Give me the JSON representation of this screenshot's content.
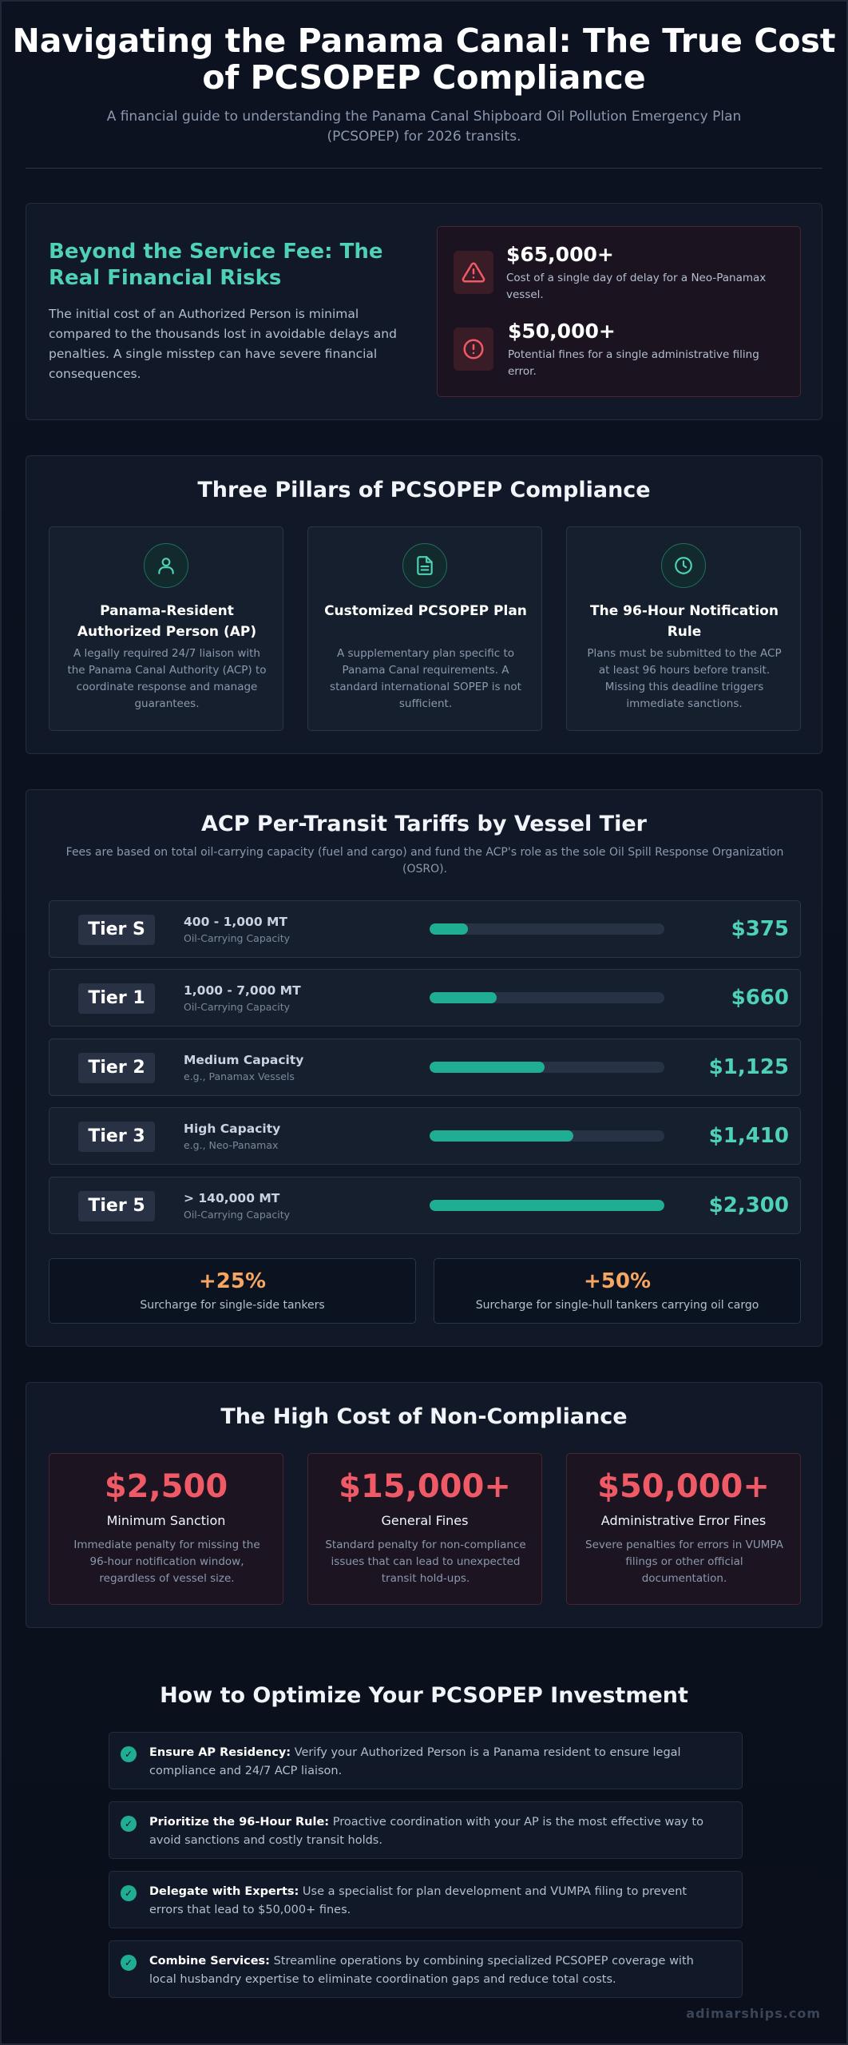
{
  "header": {
    "title": "Navigating the Panama Canal: The True Cost of PCSOPEP Compliance",
    "subtitle": "A financial guide to understanding the Panama Canal Shipboard Oil Pollution Emergency Plan (PCSOPEP) for 2026 transits."
  },
  "risks": {
    "title": "Beyond the Service Fee: The Real Financial Risks",
    "body": "The initial cost of an Authorized Person is minimal compared to the thousands lost in avoidable delays and penalties. A single misstep can have severe financial consequences.",
    "items": [
      {
        "amount": "$65,000+",
        "desc": "Cost of a single day of delay for a Neo-Panamax vessel.",
        "icon": "warning-triangle-icon"
      },
      {
        "amount": "$50,000+",
        "desc": "Potential fines for a single administrative filing error.",
        "icon": "alert-circle-icon"
      }
    ]
  },
  "pillars": {
    "title": "Three Pillars of PCSOPEP Compliance",
    "items": [
      {
        "title": "Panama-Resident Authorized Person (AP)",
        "desc": "A legally required 24/7 liaison with the Panama Canal Authority (ACP) to coordinate response and manage guarantees.",
        "icon": "user-icon"
      },
      {
        "title": "Customized PCSOPEP Plan",
        "desc": "A supplementary plan specific to Panama Canal requirements. A standard international SOPEP is not sufficient.",
        "icon": "document-icon"
      },
      {
        "title": "The 96-Hour Notification Rule",
        "desc": "Plans must be submitted to the ACP at least 96 hours before transit. Missing this deadline triggers immediate sanctions.",
        "icon": "clock-icon"
      }
    ]
  },
  "tariffs": {
    "title": "ACP Per-Transit Tariffs by Vessel Tier",
    "subtitle": "Fees are based on total oil-carrying capacity (fuel and cargo) and fund the ACP's role as the sole Oil Spill Response Organization (OSRO).",
    "tiers": [
      {
        "tier": "Tier S",
        "range": "400 - 1,000 MT",
        "note": "Oil-Carrying Capacity",
        "price": "$375",
        "value": 375
      },
      {
        "tier": "Tier 1",
        "range": "1,000 - 7,000 MT",
        "note": "Oil-Carrying Capacity",
        "price": "$660",
        "value": 660
      },
      {
        "tier": "Tier 2",
        "range": "Medium Capacity",
        "note": "e.g., Panamax Vessels",
        "price": "$1,125",
        "value": 1125
      },
      {
        "tier": "Tier 3",
        "range": "High Capacity",
        "note": "e.g., Neo-Panamax",
        "price": "$1,410",
        "value": 1410
      },
      {
        "tier": "Tier 5",
        "range": "> 140,000 MT",
        "note": "Oil-Carrying Capacity",
        "price": "$2,300",
        "value": 2300
      }
    ],
    "surcharges": [
      {
        "pct": "+25%",
        "desc": "Surcharge for single-side tankers"
      },
      {
        "pct": "+50%",
        "desc": "Surcharge for single-hull tankers carrying oil cargo"
      }
    ]
  },
  "noncompliance": {
    "title": "The High Cost of Non-Compliance",
    "items": [
      {
        "amount": "$2,500",
        "label": "Minimum Sanction",
        "desc": "Immediate penalty for missing the 96-hour notification window, regardless of vessel size."
      },
      {
        "amount": "$15,000+",
        "label": "General Fines",
        "desc": "Standard penalty for non-compliance issues that can lead to unexpected transit hold-ups."
      },
      {
        "amount": "$50,000+",
        "label": "Administrative Error Fines",
        "desc": "Severe penalties for errors in VUMPA filings or other official documentation."
      }
    ]
  },
  "optimize": {
    "title": "How to Optimize Your PCSOPEP Investment",
    "tips": [
      {
        "bold": "Ensure AP Residency:",
        "text": " Verify your Authorized Person is a Panama resident to ensure legal compliance and 24/7 ACP liaison."
      },
      {
        "bold": "Prioritize the 96-Hour Rule:",
        "text": " Proactive coordination with your AP is the most effective way to avoid sanctions and costly transit holds."
      },
      {
        "bold": "Delegate with Experts:",
        "text": " Use a specialist for plan development and VUMPA filing to prevent errors that lead to $50,000+ fines."
      },
      {
        "bold": "Combine Services:",
        "text": " Streamline operations by combining specialized PCSOPEP coverage with local husbandry expertise to eliminate coordination gaps and reduce total costs."
      }
    ],
    "check_glyph": "✓"
  },
  "footer": {
    "watermark": "adimarships.com"
  },
  "colors": {
    "accent": "#4fd1b5",
    "danger": "#ef5a66",
    "warning": "#f6a562",
    "background": "#0b1020"
  }
}
